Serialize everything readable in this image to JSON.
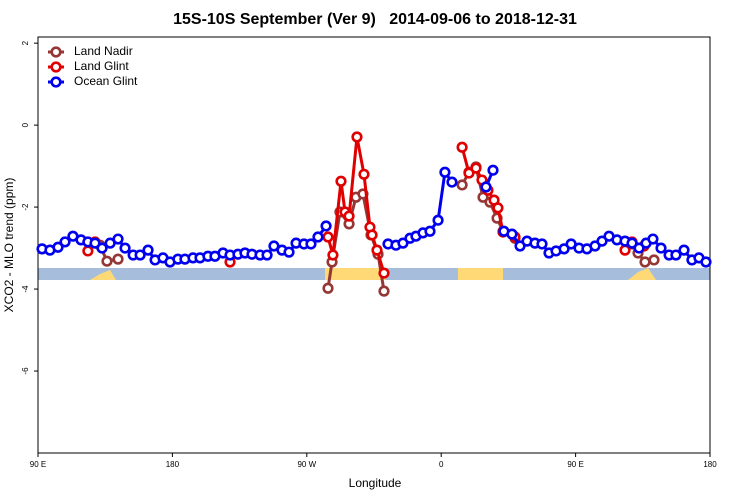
{
  "chart_data": {
    "type": "line",
    "title": "15S-10S September (Ver 9)   2014-09-06 to 2018-12-31",
    "x_label": "Longitude",
    "y_label": "XCO2 - MLO trend (ppm)",
    "xlim": [
      90,
      540
    ],
    "ylim": [
      -8,
      2.15
    ],
    "xticks": [
      {
        "value": 90,
        "label": "90 E"
      },
      {
        "value": 180,
        "label": "180"
      },
      {
        "value": 270,
        "label": "90 W"
      },
      {
        "value": 360,
        "label": "0"
      },
      {
        "value": 450,
        "label": "90 E"
      },
      {
        "value": 540,
        "label": "180"
      }
    ],
    "yticks": [
      2,
      0,
      -2,
      -4,
      -6
    ],
    "legend": "upper left",
    "series": [
      {
        "name": "Land Nadir",
        "color": "#953735",
        "x": [
          131.5,
          136.2,
          143.6,
          200,
          284.2,
          286.9,
          292.2,
          298.3,
          302.9,
          307.6,
          313.0,
          317.7,
          321.7,
          350,
          374.0,
          378.6,
          383.3,
          388.0,
          392.7,
          397.4,
          401.4,
          409.4,
          450,
          487.8,
          491.8,
          496.5,
          502.5
        ],
        "values": [
          -2.93,
          -3.32,
          -3.27,
          null,
          -3.98,
          -3.34,
          -2.12,
          -2.41,
          -1.76,
          -1.68,
          -2.68,
          -3.15,
          -4.05,
          null,
          -1.46,
          -1.15,
          -1.02,
          -1.76,
          -1.88,
          -2.27,
          -2.59,
          -2.76,
          null,
          -2.9,
          -3.12,
          -3.34,
          -3.29
        ]
      },
      {
        "name": "Land Glint",
        "color": "#e00000",
        "x": [
          123.4,
          128.2,
          180,
          218.6,
          250,
          284.2,
          287.5,
          292.9,
          295.6,
          298.3,
          303.6,
          308.3,
          312.3,
          313.7,
          317.0,
          321.7,
          350,
          374.0,
          378.6,
          383.3,
          387.3,
          391.3,
          395.4,
          398.0,
          401.4,
          409.4,
          450,
          483.1,
          487.8,
          495.8
        ],
        "values": [
          -3.07,
          -2.85,
          null,
          -3.34,
          null,
          -2.73,
          -3.17,
          -1.37,
          -2.12,
          -2.22,
          -0.29,
          -1.2,
          -2.49,
          -2.68,
          -3.05,
          -3.61,
          null,
          -0.54,
          -1.17,
          -1.05,
          -1.34,
          -1.59,
          -1.83,
          -2.02,
          -2.61,
          -2.73,
          null,
          -3.05,
          -2.85,
          -2.95
        ]
      },
      {
        "name": "Ocean Glint",
        "color": "#0000ee",
        "x": [
          92.7,
          98.0,
          103.4,
          108.1,
          113.4,
          118.8,
          123.4,
          128.2,
          132.9,
          138.3,
          143.6,
          148.3,
          153.7,
          158.4,
          163.7,
          168.4,
          173.7,
          178.4,
          183.7,
          188.4,
          193.8,
          198.5,
          203.8,
          208.5,
          213.9,
          218.6,
          223.9,
          228.6,
          233.3,
          238.7,
          243.4,
          248.0,
          253.4,
          258.1,
          262.8,
          268.1,
          272.8,
          277.5,
          282.9,
          300,
          324.4,
          329.7,
          334.4,
          339.1,
          343.1,
          347.8,
          352.5,
          357.9,
          362.5,
          367.2,
          380,
          390.0,
          394.7,
          398,
          402.0,
          407.4,
          412.8,
          417.5,
          422.8,
          427.5,
          432.2,
          436.9,
          442.3,
          447.0,
          452.3,
          457.6,
          463.0,
          467.7,
          472.4,
          477.7,
          483.1,
          487.8,
          492.5,
          497.2,
          501.8,
          507.2,
          512.6,
          517.2,
          522.6,
          527.9,
          532.6,
          537.3
        ],
        "values": [
          -3.02,
          -3.05,
          -2.98,
          -2.85,
          -2.71,
          -2.8,
          -2.85,
          -2.88,
          -3.0,
          -2.88,
          -2.78,
          -3.0,
          -3.17,
          -3.17,
          -3.05,
          -3.29,
          -3.24,
          -3.34,
          -3.27,
          -3.27,
          -3.24,
          -3.24,
          -3.2,
          -3.2,
          -3.12,
          -3.17,
          -3.15,
          -3.12,
          -3.15,
          -3.17,
          -3.17,
          -2.95,
          -3.05,
          -3.1,
          -2.88,
          -2.9,
          -2.9,
          -2.73,
          -2.46,
          null,
          -2.9,
          -2.93,
          -2.88,
          -2.76,
          -2.71,
          -2.63,
          -2.59,
          -2.32,
          -1.15,
          -1.39,
          null,
          -1.51,
          -1.1,
          null,
          -2.59,
          -2.66,
          -2.95,
          -2.83,
          -2.88,
          -2.9,
          -3.12,
          -3.07,
          -3.02,
          -2.9,
          -3.0,
          -3.02,
          -2.95,
          -2.83,
          -2.71,
          -2.8,
          -2.83,
          -2.88,
          -3.0,
          -2.88,
          -2.78,
          -3.0,
          -3.17,
          -3.17,
          -3.05,
          -3.29,
          -3.24,
          -3.34
        ]
      }
    ]
  }
}
